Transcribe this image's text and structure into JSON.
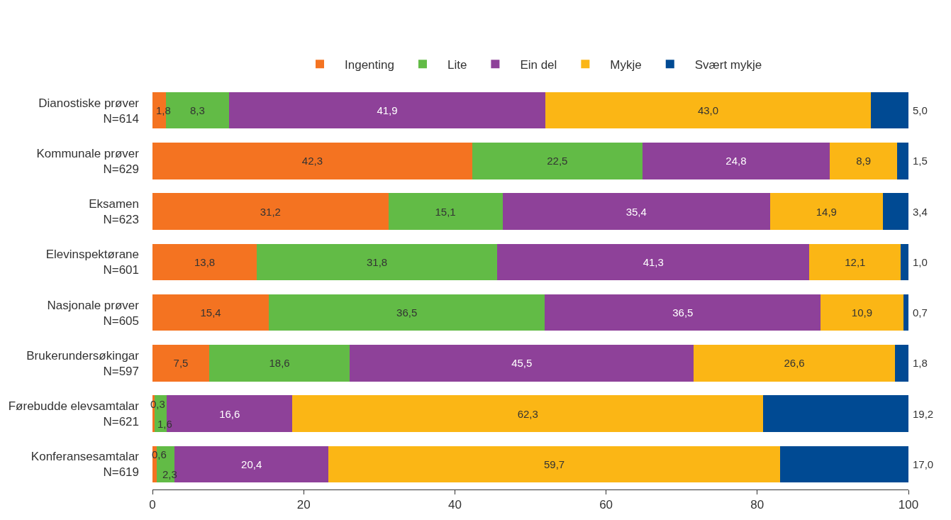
{
  "chart_data": {
    "type": "bar",
    "orientation": "horizontal",
    "stacked": true,
    "categories": [
      "Dianostiske prøver\nN=614",
      "Kommunale prøver\nN=629",
      "Eksamen\nN=623",
      "Elevinspektørane\nN=601",
      "Nasjonale prøver\nN=605",
      "Brukerundersøkingar\nN=597",
      "Førebudde elevsamtalar\nN=621",
      "Konferansesamtalar\nN=619"
    ],
    "series": [
      {
        "name": "Ingenting",
        "color": "#f47321",
        "values": [
          1.8,
          42.3,
          31.2,
          13.8,
          15.4,
          7.5,
          0.3,
          0.6
        ],
        "value_labels": [
          "1,8",
          "42,3",
          "31,2",
          "13,8",
          "15,4",
          "7,5",
          "0,3",
          "0,6"
        ]
      },
      {
        "name": "Lite",
        "color": "#62bb46",
        "values": [
          8.3,
          22.5,
          15.1,
          31.8,
          36.5,
          18.6,
          1.6,
          2.3
        ],
        "value_labels": [
          "8,3",
          "22,5",
          "15,1",
          "31,8",
          "36,5",
          "18,6",
          "1,6",
          "2,3"
        ]
      },
      {
        "name": "Ein del",
        "color": "#8e4199",
        "values": [
          41.9,
          24.8,
          35.4,
          41.3,
          36.5,
          45.5,
          16.6,
          20.4
        ],
        "value_labels": [
          "41,9",
          "24,8",
          "35,4",
          "41,3",
          "36,5",
          "45,5",
          "16,6",
          "20,4"
        ]
      },
      {
        "name": "Mykje",
        "color": "#fbb615",
        "values": [
          43.0,
          8.9,
          14.9,
          12.1,
          10.9,
          26.6,
          62.3,
          59.7
        ],
        "value_labels": [
          "43,0",
          "8,9",
          "14,9",
          "12,1",
          "10,9",
          "26,6",
          "62,3",
          "59,7"
        ]
      },
      {
        "name": "Svært mykje",
        "color": "#004a93",
        "values": [
          5.0,
          1.5,
          3.4,
          1.0,
          0.7,
          1.8,
          19.2,
          17.0
        ],
        "value_labels": [
          "5,0",
          "1,5",
          "3,4",
          "1,0",
          "0,7",
          "1,8",
          "19,2",
          "17,0"
        ]
      }
    ],
    "xlim": [
      0,
      100
    ],
    "xticks": [
      0,
      20,
      40,
      60,
      80,
      100
    ],
    "legend": "top"
  }
}
